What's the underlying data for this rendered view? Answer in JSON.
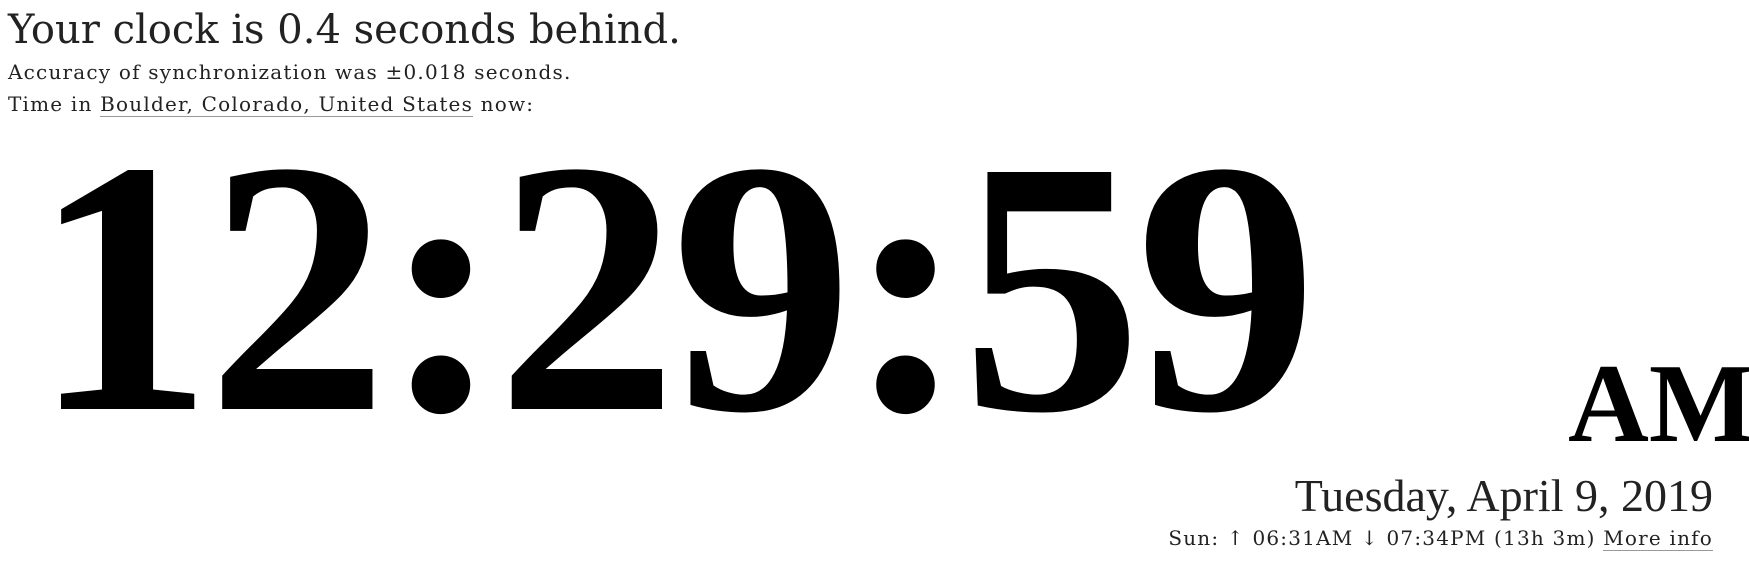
{
  "status": {
    "clock_message": "Your clock is 0.4 seconds behind.",
    "accuracy": "Accuracy of synchronization was ±0.018 seconds."
  },
  "location": {
    "prefix": "Time in",
    "place": "Boulder, Colorado, United States",
    "suffix": "now:"
  },
  "clock": {
    "time": "12:29:59",
    "period": "AM"
  },
  "date": {
    "full": "Tuesday, April 9, 2019"
  },
  "sun": {
    "label": "Sun:",
    "sunrise_icon": "↑",
    "sunrise": "06:31AM",
    "sunset_icon": "↓",
    "sunset": "07:34PM",
    "daylight": "(13h 3m)",
    "more_info": "More info"
  }
}
